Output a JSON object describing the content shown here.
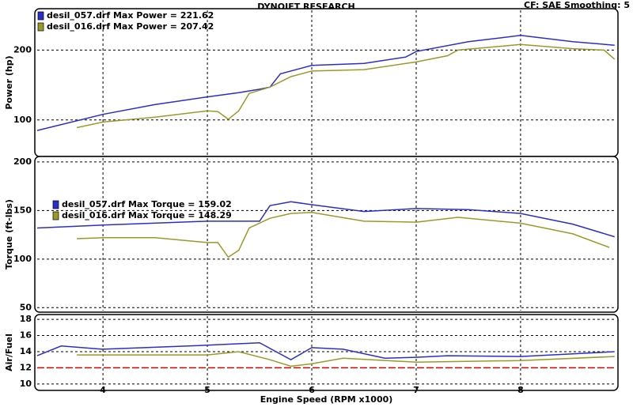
{
  "chart_data": [
    {
      "type": "line",
      "title": "DYNOJET RESEARCH",
      "subtitle": "CF: SAE  Smoothing: 5",
      "ylabel": "Power (hp)",
      "xlim": [
        3.37,
        8.91
      ],
      "xticks": [
        4,
        5,
        6,
        7,
        8
      ],
      "ylim": [
        50,
        257
      ],
      "yticks": [
        100,
        200
      ],
      "grid": true,
      "legend": "upper left",
      "series": [
        {
          "name": "desil_057.drf Max Power = 221.62",
          "color": "#2a2fc8",
          "x": [
            3.37,
            4,
            4.5,
            5,
            5.3,
            5.5,
            5.6,
            5.7,
            6,
            6.5,
            6.9,
            7,
            7.5,
            8,
            8.5,
            8.9
          ],
          "values": [
            85,
            108,
            122,
            133,
            139,
            144,
            147,
            166,
            178,
            181,
            190,
            198,
            212,
            221,
            212,
            207
          ]
        },
        {
          "name": "desil_016.drf Max Power = 207.42",
          "color": "#9a9a28",
          "x": [
            3.75,
            4,
            4.5,
            5,
            5.1,
            5.2,
            5.3,
            5.4,
            5.6,
            5.8,
            6,
            6.5,
            7,
            7.3,
            7.4,
            8,
            8.5,
            8.8,
            8.9
          ],
          "values": [
            89,
            97,
            104,
            113,
            112,
            101,
            113,
            138,
            147,
            162,
            170,
            172,
            183,
            192,
            200,
            208,
            202,
            200,
            187
          ]
        }
      ]
    },
    {
      "type": "line",
      "ylabel": "Torque (ft-lbs)",
      "xlim": [
        3.37,
        8.91
      ],
      "xticks": [
        4,
        5,
        6,
        7,
        8
      ],
      "ylim": [
        47,
        204
      ],
      "yticks": [
        50,
        100,
        150,
        200
      ],
      "grid": true,
      "legend": "center left",
      "series": [
        {
          "name": "desil_057.drf Max Torque = 159.02",
          "color": "#2a2fc8",
          "x": [
            3.37,
            4,
            5,
            5.5,
            5.6,
            5.8,
            6,
            6.5,
            7,
            7.5,
            8,
            8.5,
            8.9
          ],
          "values": [
            132,
            135,
            139,
            139,
            155,
            159,
            156,
            149,
            152,
            151,
            147,
            136,
            123
          ]
        },
        {
          "name": "desil_016.drf Max Torque = 148.29",
          "color": "#9a9a28",
          "x": [
            3.75,
            4,
            4.5,
            5,
            5.1,
            5.2,
            5.3,
            5.4,
            5.6,
            5.8,
            6,
            6.5,
            7,
            7.4,
            8,
            8.5,
            8.85
          ],
          "values": [
            121,
            122,
            122,
            117,
            117,
            102,
            109,
            132,
            142,
            147,
            148,
            139,
            138,
            143,
            137,
            126,
            112
          ]
        }
      ]
    },
    {
      "type": "line",
      "ylabel": "Air/Fuel",
      "xlabel": "Engine Speed (RPM x1000)",
      "xlim": [
        3.37,
        8.91
      ],
      "xticks": [
        4,
        5,
        6,
        7,
        8
      ],
      "ylim": [
        9.4,
        18.4
      ],
      "yticks": [
        10,
        12,
        14,
        16,
        18
      ],
      "grid": true,
      "reference_line": {
        "value": 12,
        "color": "#e00000"
      },
      "series": [
        {
          "name": "desil_057.drf",
          "color": "#2a2fc8",
          "x": [
            3.37,
            3.6,
            4,
            5,
            5.5,
            5.8,
            6,
            6.3,
            6.7,
            7,
            7.3,
            8,
            8.9
          ],
          "values": [
            13.5,
            14.7,
            14.3,
            14.8,
            15.1,
            13,
            14.5,
            14.3,
            13.2,
            13.3,
            13.5,
            13.4,
            14
          ]
        },
        {
          "name": "desil_016.drf",
          "color": "#9a9a28",
          "x": [
            3.75,
            5,
            5.3,
            5.6,
            5.8,
            6,
            6.3,
            7,
            8,
            8.9
          ],
          "values": [
            13.6,
            13.6,
            14,
            13,
            12.2,
            12.5,
            13.2,
            12.7,
            12.9,
            13.4
          ]
        }
      ]
    }
  ]
}
